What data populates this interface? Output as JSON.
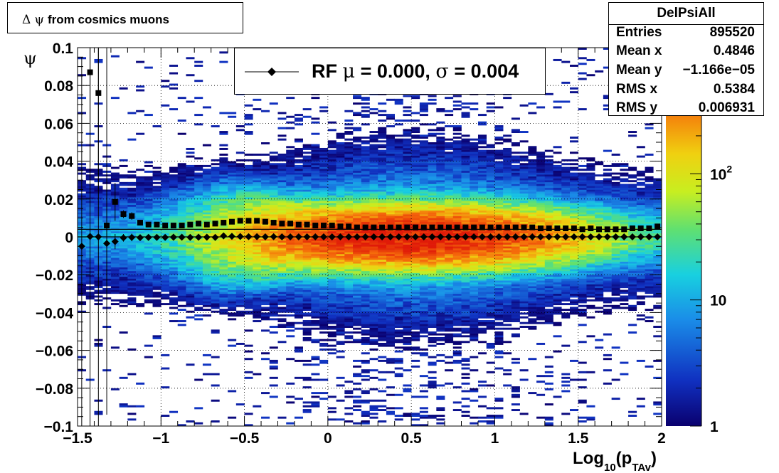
{
  "title_box": {
    "symbol": "Δ ψ",
    "text": "from cosmics muons"
  },
  "stats": {
    "name": "DelPsiAll",
    "rows": [
      {
        "label": "Entries",
        "value": "895520"
      },
      {
        "label": "Mean x",
        "value": "0.4846"
      },
      {
        "label": "Mean y",
        "value": "−1.166e−05"
      },
      {
        "label": "RMS x",
        "value": "0.5384"
      },
      {
        "label": "RMS y",
        "value": "0.006931"
      }
    ]
  },
  "legend": {
    "rf": "RF",
    "mu": "μ",
    "mid": " =  0.000, ",
    "sigma": "σ",
    "end": " =   0.004"
  },
  "colors": {
    "frame": "#000000",
    "grid": "#000000",
    "marker": "#000000"
  },
  "chart_data": {
    "type": "heatmap",
    "title": "",
    "xlabel": "Log10(pTAv)",
    "xlabel_parts": {
      "base": "Log",
      "sub1": "10",
      "mid": "(p",
      "sub2": "TAv",
      "end": ")"
    },
    "ylabel": "ψ",
    "xlim": [
      -1.5,
      2
    ],
    "ylim": [
      -0.1,
      0.1
    ],
    "x_ticks": [
      {
        "v": -1.5,
        "label": "−1.5"
      },
      {
        "v": -1,
        "label": "−1"
      },
      {
        "v": -0.5,
        "label": "−0.5"
      },
      {
        "v": 0,
        "label": "0"
      },
      {
        "v": 0.5,
        "label": "0.5"
      },
      {
        "v": 1,
        "label": "1"
      },
      {
        "v": 1.5,
        "label": "1.5"
      },
      {
        "v": 2,
        "label": "2"
      }
    ],
    "y_ticks": [
      {
        "v": 0.1,
        "label": "0.1"
      },
      {
        "v": 0.08,
        "label": "0.08"
      },
      {
        "v": 0.06,
        "label": "0.06"
      },
      {
        "v": 0.04,
        "label": "0.04"
      },
      {
        "v": 0.02,
        "label": "0.02"
      },
      {
        "v": 0,
        "label": "0"
      },
      {
        "v": -0.02,
        "label": "−0.02"
      },
      {
        "v": -0.04,
        "label": "−0.04"
      },
      {
        "v": -0.06,
        "label": "−0.06"
      },
      {
        "v": -0.08,
        "label": "−0.08"
      },
      {
        "v": -0.1,
        "label": "−0.1"
      }
    ],
    "grid": true,
    "z_scale": "log",
    "colorbar": {
      "min": 1,
      "max": 1000,
      "labels": [
        {
          "v": 1,
          "label": "1"
        },
        {
          "v": 10,
          "label": "10"
        },
        {
          "v": 100,
          "label": "10",
          "sup": "2"
        }
      ]
    },
    "density_model": {
      "peak": 1000,
      "x_center": 0.5,
      "x_width": 0.72,
      "y_sigma": 0.0075,
      "background": 1.2
    },
    "series": [
      {
        "name": "RF",
        "marker": "diamond",
        "x": [
          -1.475,
          -1.425,
          -1.375,
          -1.325,
          -1.275,
          -1.225,
          -1.175,
          -1.125,
          -1.075,
          -1.025,
          -0.975,
          -0.925,
          -0.875,
          -0.825,
          -0.775,
          -0.725,
          -0.675,
          -0.625,
          -0.575,
          -0.525,
          -0.475,
          -0.425,
          -0.375,
          -0.325,
          -0.275,
          -0.225,
          -0.175,
          -0.125,
          -0.075,
          -0.025,
          0.025,
          0.075,
          0.125,
          0.175,
          0.225,
          0.275,
          0.325,
          0.375,
          0.425,
          0.475,
          0.525,
          0.575,
          0.625,
          0.675,
          0.725,
          0.775,
          0.825,
          0.875,
          0.925,
          0.975,
          1.025,
          1.075,
          1.125,
          1.175,
          1.225,
          1.275,
          1.325,
          1.375,
          1.425,
          1.475,
          1.525,
          1.575,
          1.625,
          1.675,
          1.725,
          1.775,
          1.825,
          1.875,
          1.925,
          1.975
        ],
        "y": [
          -0.005,
          0.0002,
          0.0,
          -0.0035,
          -0.0025,
          -0.0005,
          -0.0003,
          -0.0004,
          -0.0003,
          -0.0003,
          -0.0003,
          -0.0002,
          -0.0002,
          -0.0003,
          -0.0002,
          -0.0002,
          -0.0003,
          0.0005,
          0.0003,
          0.0002,
          0.0001,
          0.0001,
          0.0,
          0.0001,
          0.0,
          0.0,
          0.0,
          0.0,
          0.0,
          0.0,
          0.0,
          0.0,
          0.0,
          0.0,
          0.0,
          0.0,
          0.0,
          0.0,
          0.0,
          0.0,
          0.0,
          0.0,
          0.0,
          0.0,
          0.0,
          0.0,
          0.0,
          0.0,
          0.0,
          0.0,
          0.0,
          0.0,
          0.0,
          0.0,
          0.0,
          0.0,
          0.0,
          0.0,
          0.0,
          0.0,
          0.0,
          0.0,
          0.0,
          0.0,
          0.0,
          0.0,
          0.0,
          0.0,
          0.0,
          0.0
        ],
        "yerr": [
          0.1,
          0.1,
          0.1,
          0.03,
          0.004,
          0.002,
          0.002,
          0.001,
          0.001,
          0.001,
          0.001,
          0.0005,
          0.0005,
          0.0005,
          0.0005,
          0.0005,
          0.0005,
          0.0005,
          0.0004,
          0.0004,
          0.0003,
          0.0003,
          0.0003,
          0.0003,
          0.0003,
          0.0003,
          0.0003,
          0.0003,
          0.0003,
          0.0003,
          0.0003,
          0.0003,
          0.0003,
          0.0003,
          0.0003,
          0.0003,
          0.0003,
          0.0003,
          0.0003,
          0.0003,
          0.0003,
          0.0003,
          0.0003,
          0.0003,
          0.0003,
          0.0003,
          0.0003,
          0.0003,
          0.0003,
          0.0003,
          0.0003,
          0.0003,
          0.0003,
          0.0003,
          0.0003,
          0.0003,
          0.0003,
          0.0003,
          0.0003,
          0.0003,
          0.0003,
          0.0003,
          0.0003,
          0.0003,
          0.0003,
          0.0003,
          0.0003,
          0.0003,
          0.0003,
          0.0003
        ]
      },
      {
        "name": "",
        "marker": "square",
        "x": [
          -1.425,
          -1.375,
          -1.325,
          -1.275,
          -1.225,
          -1.175,
          -1.125,
          -1.075,
          -1.025,
          -0.975,
          -0.925,
          -0.875,
          -0.825,
          -0.775,
          -0.725,
          -0.675,
          -0.625,
          -0.575,
          -0.525,
          -0.475,
          -0.425,
          -0.375,
          -0.325,
          -0.275,
          -0.225,
          -0.175,
          -0.125,
          -0.075,
          -0.025,
          0.025,
          0.075,
          0.125,
          0.175,
          0.225,
          0.275,
          0.325,
          0.375,
          0.425,
          0.475,
          0.525,
          0.575,
          0.625,
          0.675,
          0.725,
          0.775,
          0.825,
          0.875,
          0.925,
          0.975,
          1.025,
          1.075,
          1.125,
          1.175,
          1.225,
          1.275,
          1.325,
          1.375,
          1.425,
          1.475,
          1.525,
          1.575,
          1.625,
          1.675,
          1.725,
          1.775,
          1.825,
          1.875,
          1.925,
          1.975
        ],
        "y": [
          0.087,
          0.076,
          0.006,
          0.0185,
          0.012,
          0.011,
          0.0075,
          0.0065,
          0.0065,
          0.006,
          0.006,
          0.006,
          0.0065,
          0.007,
          0.0065,
          0.007,
          0.0075,
          0.008,
          0.0085,
          0.0085,
          0.0085,
          0.008,
          0.0075,
          0.007,
          0.007,
          0.0065,
          0.0065,
          0.006,
          0.006,
          0.006,
          0.0055,
          0.0055,
          0.005,
          0.005,
          0.005,
          0.005,
          0.005,
          0.005,
          0.005,
          0.005,
          0.005,
          0.005,
          0.005,
          0.005,
          0.005,
          0.005,
          0.005,
          0.005,
          0.005,
          0.005,
          0.005,
          0.005,
          0.005,
          0.005,
          0.0045,
          0.0045,
          0.0045,
          0.0045,
          0.0045,
          0.004,
          0.0045,
          0.004,
          0.004,
          0.004,
          0.004,
          0.0045,
          0.0045,
          0.0045,
          0.0055
        ],
        "yerr": [
          0.05,
          0.05,
          0.1,
          0.01,
          0.002,
          0.002,
          0.001,
          0.001,
          0.001,
          0.001,
          0.0005,
          0.0005,
          0.0005,
          0.0005,
          0.0005,
          0.0005,
          0.0005,
          0.0005,
          0.0004,
          0.0004,
          0.0003,
          0.0003,
          0.0003,
          0.0003,
          0.0003,
          0.0003,
          0.0003,
          0.0003,
          0.0003,
          0.0003,
          0.0003,
          0.0003,
          0.0003,
          0.0003,
          0.0003,
          0.0003,
          0.0003,
          0.0003,
          0.0003,
          0.0003,
          0.0003,
          0.0003,
          0.0003,
          0.0003,
          0.0003,
          0.0003,
          0.0003,
          0.0003,
          0.0003,
          0.0003,
          0.0003,
          0.0003,
          0.0003,
          0.0003,
          0.0003,
          0.0003,
          0.0003,
          0.0003,
          0.0003,
          0.0003,
          0.0003,
          0.0003,
          0.0003,
          0.0003,
          0.0003,
          0.0003,
          0.0003,
          0.0003,
          0.0003
        ]
      }
    ],
    "reference_lines": [
      0.0,
      0.004
    ]
  }
}
